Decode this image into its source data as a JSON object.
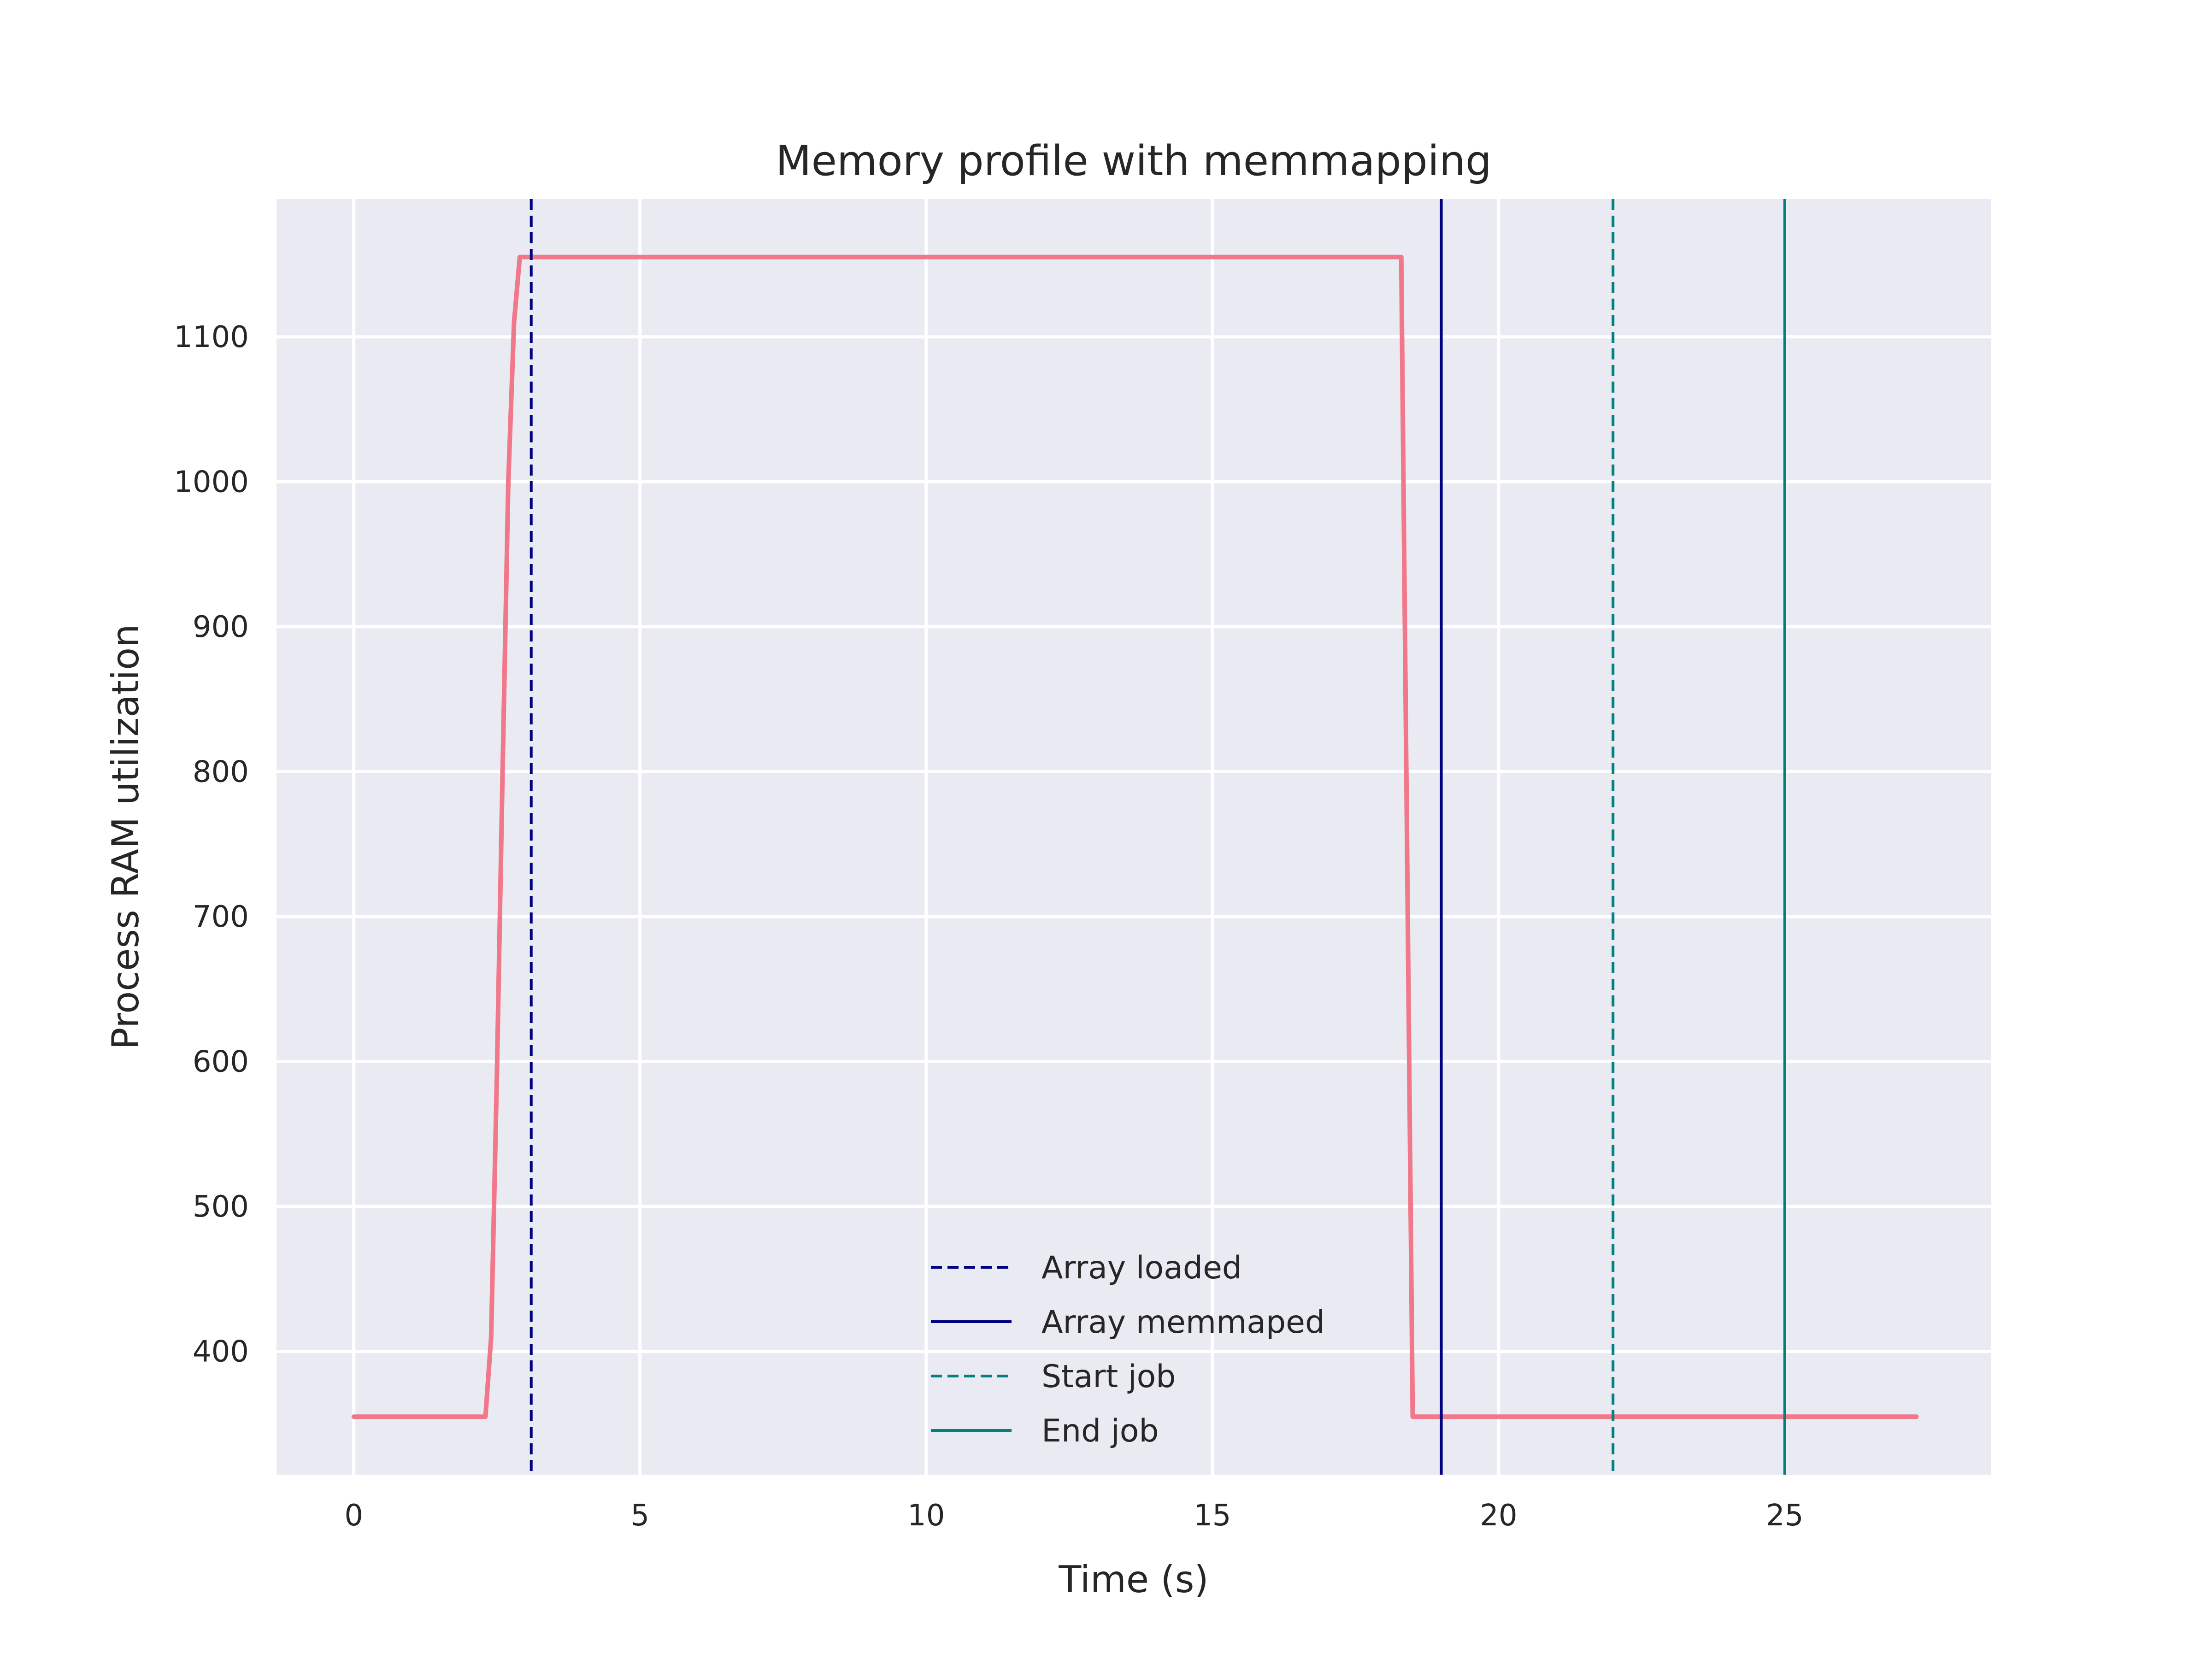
{
  "chart_data": {
    "type": "line",
    "title": "Memory profile with memmapping",
    "xlabel": "Time (s)",
    "ylabel": "Process RAM utilization",
    "xlim": [
      -1.35,
      28.6
    ],
    "ylim": [
      315,
      1195
    ],
    "xticks": [
      0,
      5,
      10,
      15,
      20,
      25
    ],
    "yticks": [
      400,
      500,
      600,
      700,
      800,
      900,
      1000,
      1100
    ],
    "grid": true,
    "background": "#eaeaf2",
    "series": [
      {
        "color": "#f0788a",
        "x": [
          0,
          0.5,
          1.0,
          1.5,
          2.0,
          2.3,
          2.4,
          2.5,
          2.6,
          2.7,
          2.8,
          2.9,
          3.0,
          4,
          6,
          8,
          10,
          12,
          14,
          16,
          18,
          18.3,
          18.5,
          19,
          20,
          21,
          22,
          23,
          24,
          25,
          26,
          27,
          27.3
        ],
        "y": [
          355,
          355,
          355,
          355,
          355,
          355,
          410,
          590,
          800,
          1000,
          1110,
          1155,
          1155,
          1155,
          1155,
          1155,
          1155,
          1155,
          1155,
          1155,
          1155,
          1155,
          355,
          355,
          355,
          355,
          355,
          355,
          355,
          355,
          355,
          355,
          355
        ]
      }
    ],
    "vlines": [
      {
        "x": 3.1,
        "label": "Array loaded",
        "color": "#000080",
        "style": "dashed"
      },
      {
        "x": 19.0,
        "label": "Array memmaped",
        "color": "#000080",
        "style": "solid"
      },
      {
        "x": 22.0,
        "label": "Start job",
        "color": "#008080",
        "style": "dashed"
      },
      {
        "x": 25.0,
        "label": "End job",
        "color": "#008080",
        "style": "solid"
      }
    ],
    "legend_position": "lower-center"
  }
}
